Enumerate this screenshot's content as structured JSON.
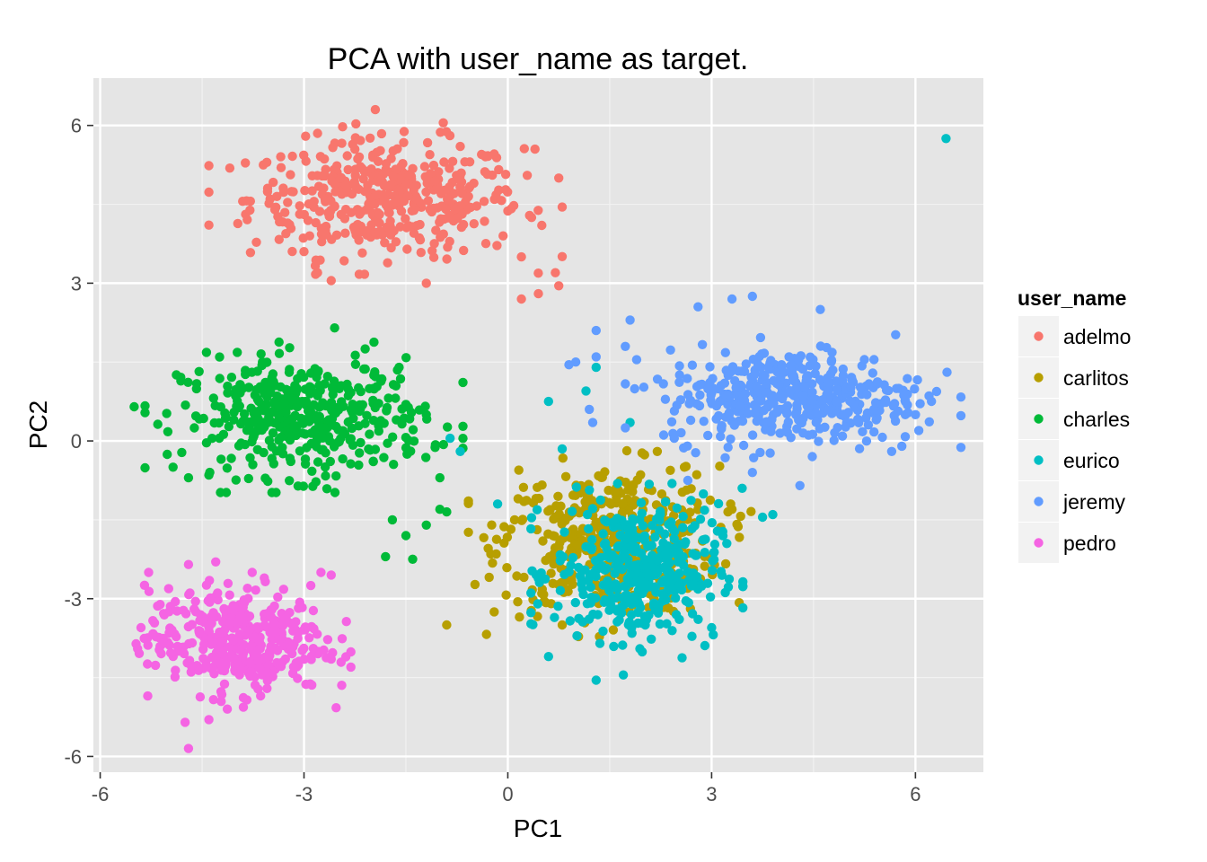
{
  "chart_data": {
    "type": "scatter",
    "title": "PCA with user_name as target.",
    "xlabel": "PC1",
    "ylabel": "PC2",
    "xlim": [
      -6.1,
      7
    ],
    "ylim": [
      -6.3,
      6.9
    ],
    "x_ticks": [
      -6,
      -3,
      0,
      3,
      6
    ],
    "y_ticks": [
      -6,
      -3,
      0,
      3,
      6
    ],
    "x_tick_labels": [
      "-6",
      "-3",
      "0",
      "3",
      "6"
    ],
    "y_tick_labels": [
      "-6",
      "-3",
      "0",
      "3",
      "6"
    ],
    "grid": true,
    "legend": {
      "title": "user_name",
      "placement": "right"
    },
    "series": [
      {
        "name": "adelmo",
        "color": "#F8766D",
        "center": [
          -1.8,
          4.6
        ],
        "spread": [
          1.0,
          0.55
        ],
        "n": 420,
        "points": [
          [
            -1.95,
            6.3
          ],
          [
            -2.8,
            5.85
          ],
          [
            -0.7,
            5.6
          ],
          [
            -0.95,
            6.05
          ],
          [
            0.4,
            5.55
          ],
          [
            -3.4,
            4.65
          ],
          [
            -3.5,
            4.6
          ],
          [
            -3.0,
            3.6
          ],
          [
            -2.8,
            3.2
          ],
          [
            -2.6,
            3.05
          ],
          [
            0.2,
            3.5
          ],
          [
            0.7,
            3.2
          ],
          [
            0.75,
            2.95
          ],
          [
            0.45,
            2.8
          ],
          [
            0.2,
            2.7
          ],
          [
            0.35,
            4.25
          ],
          [
            0.75,
            5.0
          ],
          [
            0.5,
            4.1
          ],
          [
            -1.2,
            3.0
          ]
        ]
      },
      {
        "name": "carlitos",
        "color": "#B79F00",
        "center": [
          1.5,
          -1.9
        ],
        "spread": [
          0.8,
          0.7
        ],
        "n": 420,
        "points": [
          [
            -0.9,
            -3.5
          ],
          [
            -0.2,
            -3.25
          ],
          [
            -0.25,
            -2.15
          ],
          [
            0.1,
            -1.5
          ],
          [
            2.2,
            -0.2
          ],
          [
            2.6,
            -0.5
          ],
          [
            3.3,
            -1.3
          ],
          [
            0.8,
            -3.5
          ],
          [
            0.5,
            -2.9
          ]
        ]
      },
      {
        "name": "charles",
        "color": "#00BA38",
        "center": [
          -3.0,
          0.45
        ],
        "spread": [
          0.9,
          0.55
        ],
        "n": 420,
        "points": [
          [
            -5.5,
            0.65
          ],
          [
            -2.55,
            2.15
          ],
          [
            -2.1,
            1.75
          ],
          [
            -1.6,
            1.4
          ],
          [
            -1.2,
            0.5
          ],
          [
            -4.7,
            -0.7
          ],
          [
            -4.4,
            -0.65
          ],
          [
            -1.7,
            -1.5
          ],
          [
            -1.5,
            -1.8
          ],
          [
            -1.8,
            -2.2
          ],
          [
            -1.4,
            -2.25
          ],
          [
            -1.2,
            -1.6
          ],
          [
            -1.0,
            -1.3
          ],
          [
            -0.9,
            -1.35
          ],
          [
            -1.0,
            -0.7
          ]
        ]
      },
      {
        "name": "eurico",
        "color": "#00BFC4",
        "center": [
          1.9,
          -2.5
        ],
        "spread": [
          0.6,
          0.65
        ],
        "n": 380,
        "points": [
          [
            6.45,
            5.75
          ],
          [
            -0.85,
            0.05
          ],
          [
            -0.7,
            -0.2
          ],
          [
            -0.15,
            -1.2
          ],
          [
            0.6,
            0.75
          ],
          [
            1.3,
            1.4
          ],
          [
            1.15,
            0.95
          ],
          [
            0.8,
            -0.15
          ],
          [
            1.3,
            -4.55
          ],
          [
            1.7,
            -4.45
          ],
          [
            0.6,
            -4.1
          ],
          [
            3.0,
            -3.55
          ],
          [
            3.45,
            -0.9
          ],
          [
            3.75,
            -1.45
          ],
          [
            3.9,
            -1.4
          ],
          [
            1.8,
            0.35
          ]
        ]
      },
      {
        "name": "jeremy",
        "color": "#619CFF",
        "center": [
          4.2,
          0.85
        ],
        "spread": [
          0.95,
          0.45
        ],
        "n": 420,
        "points": [
          [
            1.8,
            2.3
          ],
          [
            1.3,
            2.1
          ],
          [
            1.3,
            1.6
          ],
          [
            1.0,
            1.5
          ],
          [
            0.9,
            1.45
          ],
          [
            1.25,
            0.35
          ],
          [
            1.2,
            0.6
          ],
          [
            3.6,
            2.75
          ],
          [
            3.3,
            2.7
          ],
          [
            2.8,
            2.55
          ],
          [
            4.6,
            2.5
          ],
          [
            5.85,
            0.5
          ],
          [
            6.0,
            0.5
          ],
          [
            6.05,
            0.2
          ],
          [
            5.8,
            -0.1
          ],
          [
            5.65,
            -0.2
          ],
          [
            2.65,
            -0.75
          ],
          [
            3.6,
            -0.6
          ],
          [
            4.3,
            -0.85
          ]
        ]
      },
      {
        "name": "pedro",
        "color": "#F564E3",
        "center": [
          -4.0,
          -3.8
        ],
        "spread": [
          0.65,
          0.5
        ],
        "n": 380,
        "points": [
          [
            -4.7,
            -5.85
          ],
          [
            -4.75,
            -5.35
          ],
          [
            -5.3,
            -4.85
          ],
          [
            -5.45,
            -3.95
          ],
          [
            -5.4,
            -3.55
          ],
          [
            -4.3,
            -2.3
          ],
          [
            -4.7,
            -2.35
          ],
          [
            -2.6,
            -2.55
          ],
          [
            -2.9,
            -2.75
          ],
          [
            -2.75,
            -2.5
          ],
          [
            -2.6,
            -4.15
          ],
          [
            -4.4,
            -5.3
          ]
        ]
      }
    ]
  }
}
